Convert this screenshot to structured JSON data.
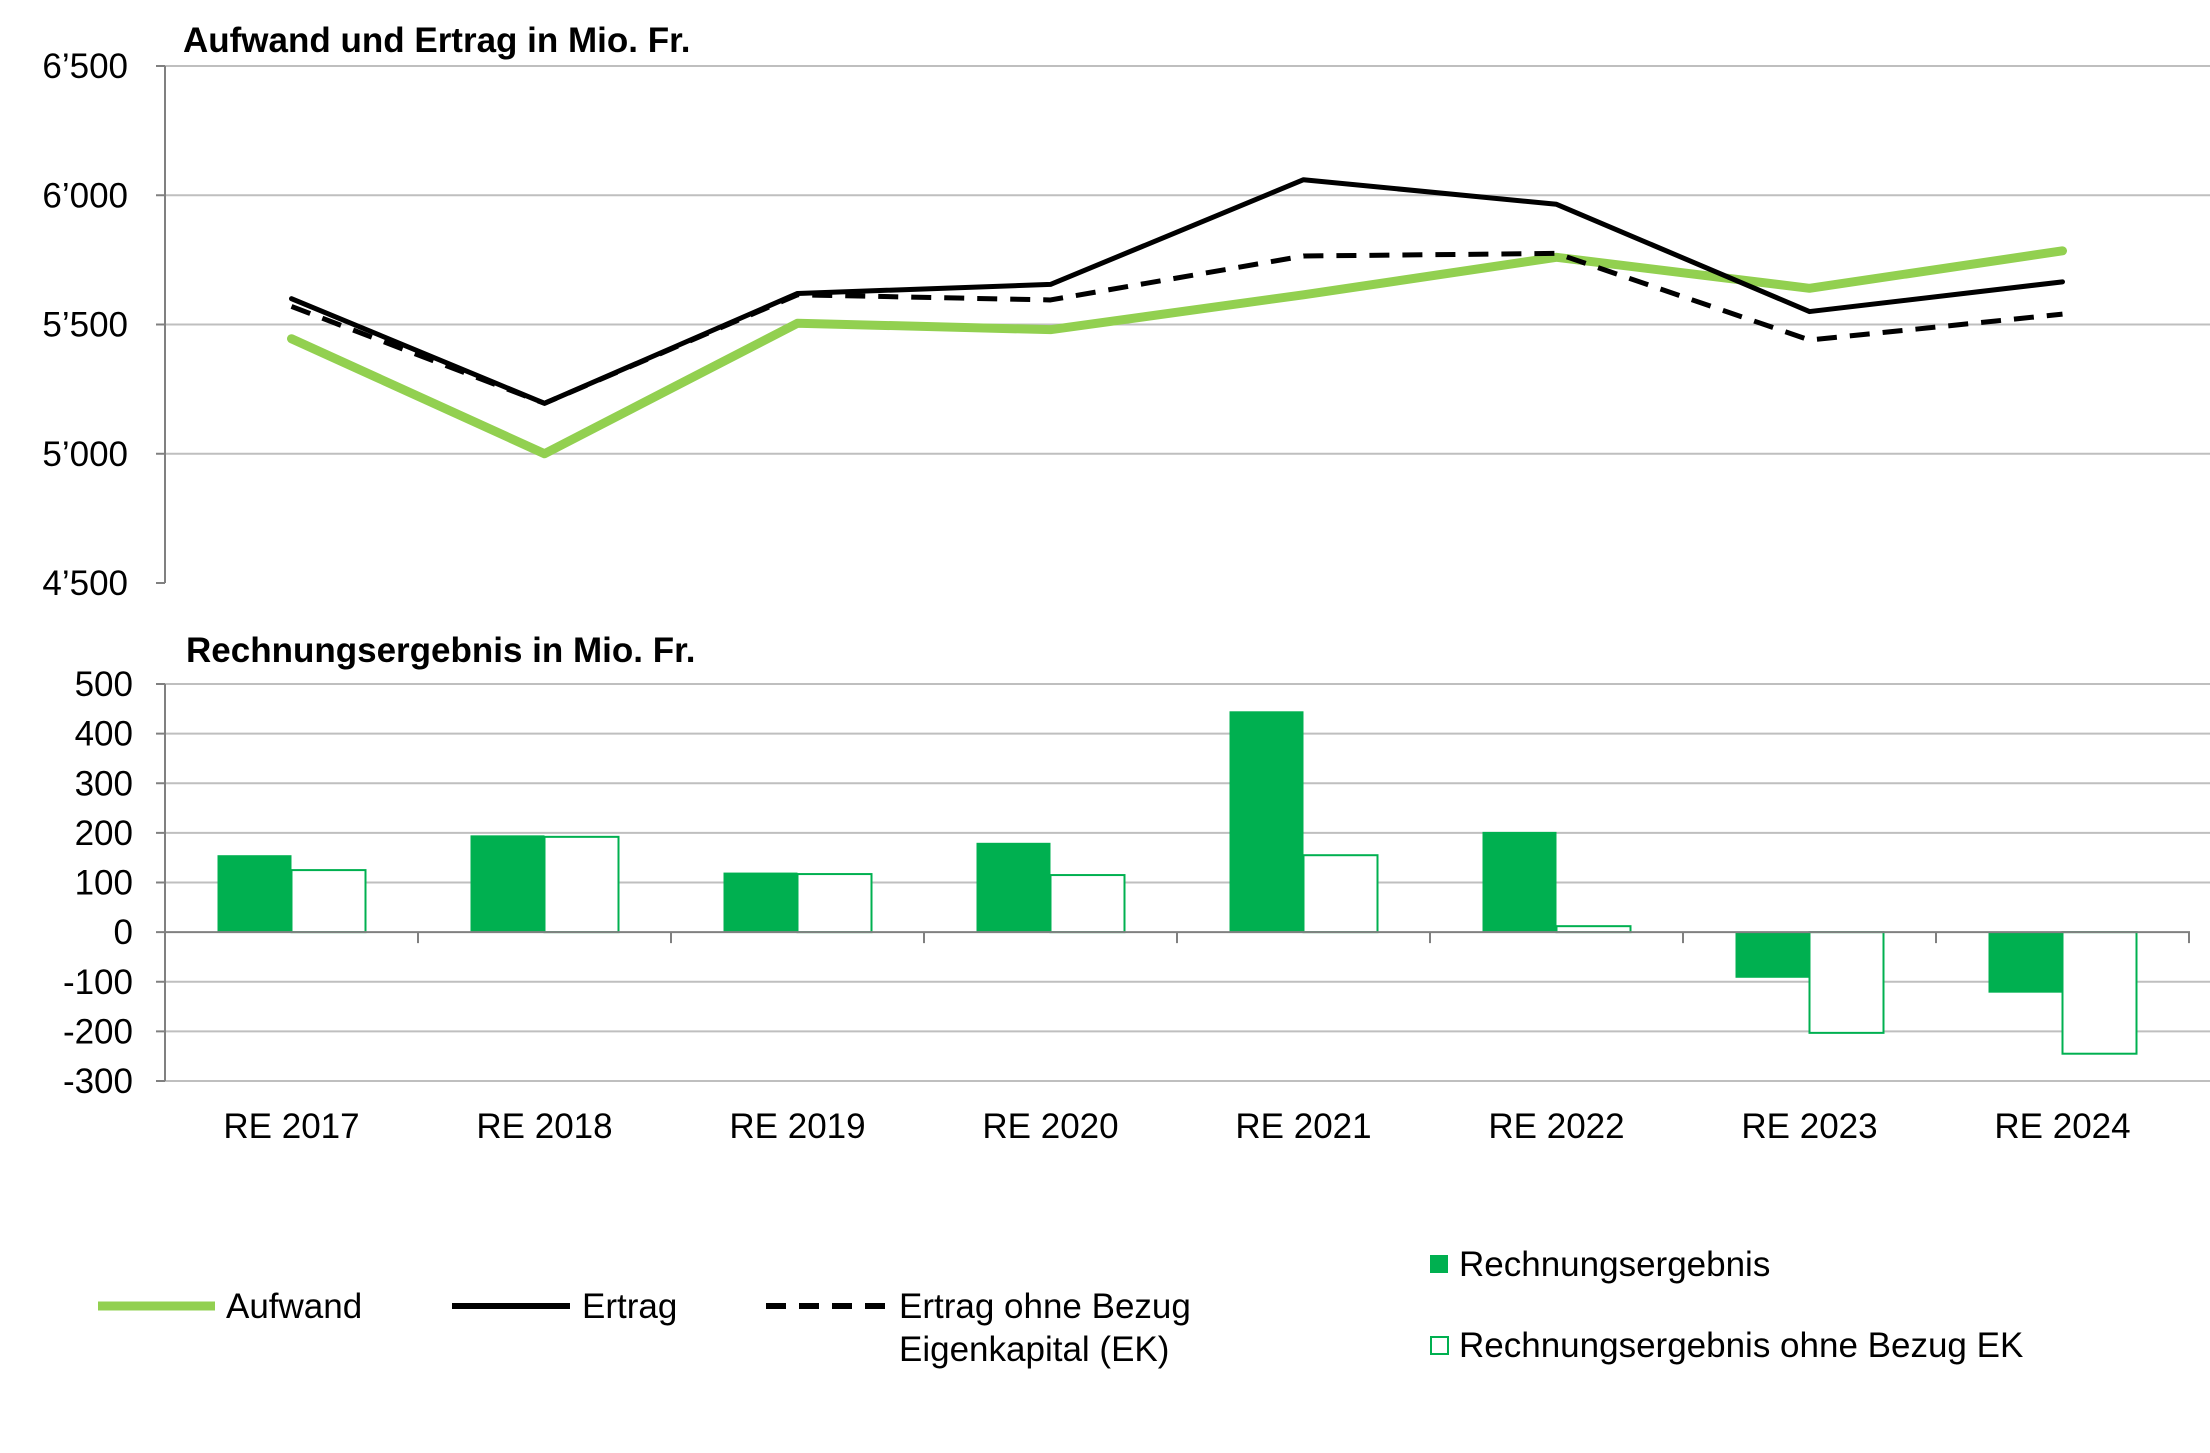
{
  "chart_data": [
    {
      "type": "line",
      "title": "Aufwand und Ertrag in Mio. Fr.",
      "categories": [
        "RE 2017",
        "RE 2018",
        "RE 2019",
        "RE 2020",
        "RE 2021",
        "RE 2022",
        "RE 2023",
        "RE 2024"
      ],
      "ylim": [
        4500,
        6500
      ],
      "yticks": [
        4500,
        5000,
        5500,
        6000,
        6500
      ],
      "ytick_labels": [
        "4’500",
        "5’000",
        "5’500",
        "6’000",
        "6’500"
      ],
      "grid": true,
      "series": [
        {
          "name": "Aufwand",
          "color": "#92d050",
          "style": "solid-thick",
          "values": [
            5445,
            5000,
            5505,
            5480,
            5615,
            5760,
            5640,
            5785
          ]
        },
        {
          "name": "Ertrag",
          "color": "#000000",
          "style": "solid",
          "values": [
            5600,
            5195,
            5620,
            5655,
            6060,
            5965,
            5550,
            5665
          ]
        },
        {
          "name": "Ertrag ohne Bezug Eigenkapital (EK)",
          "color": "#000000",
          "style": "dashed",
          "values": [
            5570,
            5195,
            5615,
            5595,
            5765,
            5775,
            5440,
            5540
          ]
        }
      ]
    },
    {
      "type": "bar",
      "title": "Rechnungsergebnis in Mio. Fr.",
      "categories": [
        "RE 2017",
        "RE 2018",
        "RE 2019",
        "RE 2020",
        "RE 2021",
        "RE 2022",
        "RE 2023",
        "RE 2024"
      ],
      "ylim": [
        -300,
        500
      ],
      "yticks": [
        -300,
        -200,
        -100,
        0,
        100,
        200,
        300,
        400,
        500
      ],
      "ytick_labels": [
        "-300",
        "-200",
        "-100",
        "0",
        "100",
        "200",
        "300",
        "400",
        "500"
      ],
      "grid": true,
      "series": [
        {
          "name": "Rechnungsergebnis",
          "color": "#00b050",
          "fill": "solid",
          "values": [
            155,
            195,
            120,
            180,
            445,
            202,
            -92,
            -122
          ]
        },
        {
          "name": "Rechnungsergebnis ohne Bezug EK",
          "color": "#00b050",
          "fill": "outline",
          "values": [
            125,
            192,
            117,
            115,
            155,
            12,
            -203,
            -245
          ]
        }
      ]
    }
  ],
  "legend": {
    "placement": "bottom",
    "aufwand": "Aufwand",
    "ertrag": "Ertrag",
    "ertrag_ohne_line1": "Ertrag ohne Bezug",
    "ertrag_ohne_line2": "Eigenkapital (EK)",
    "re": "Rechnungsergebnis",
    "re_ohne": "Rechnungsergebnis ohne Bezug EK"
  }
}
